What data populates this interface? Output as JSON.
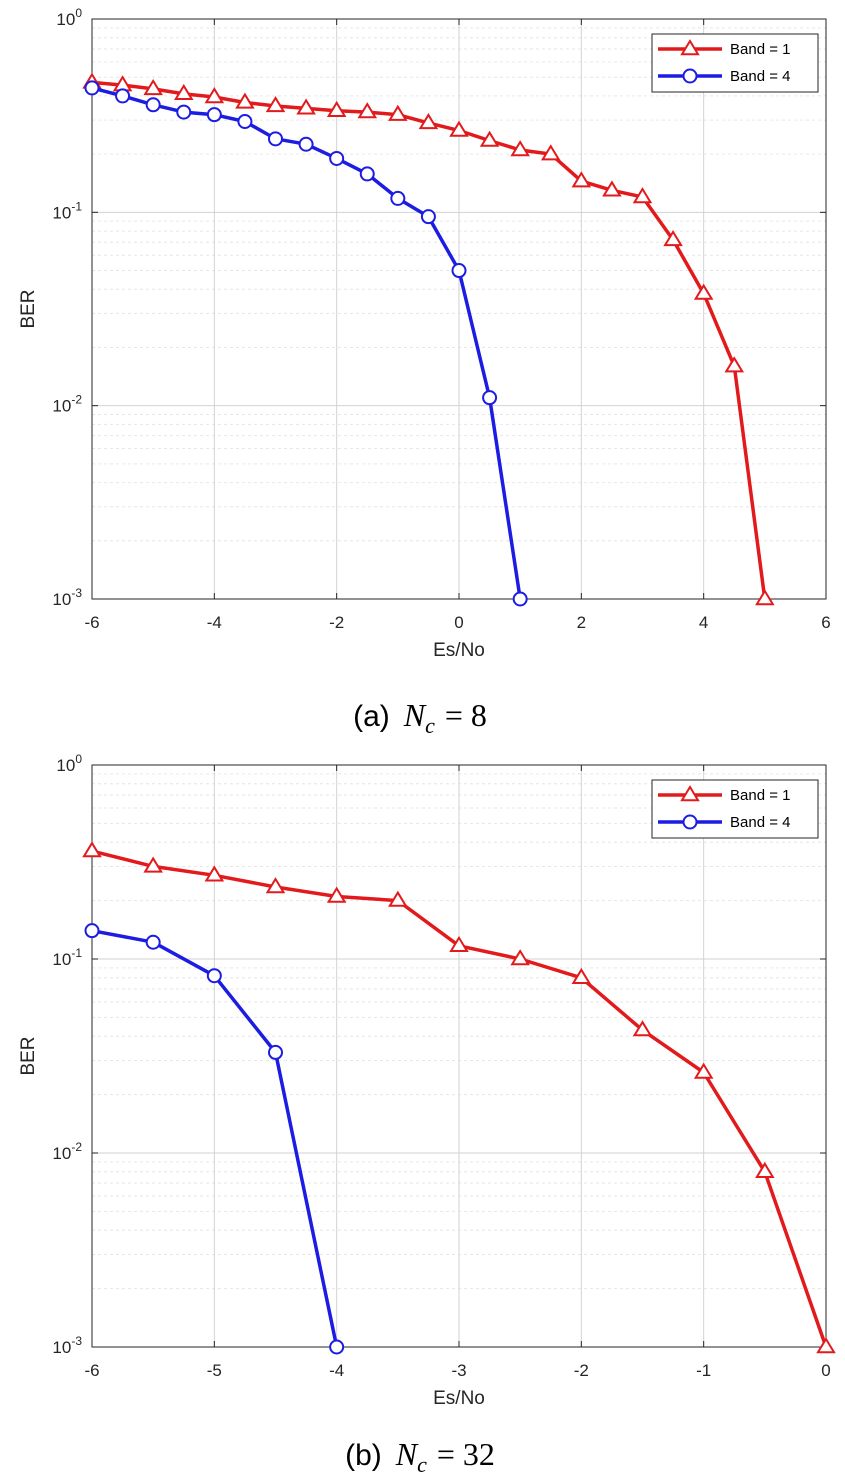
{
  "chart_data": [
    {
      "type": "line",
      "yscale": "log",
      "xlabel": "Es/No",
      "ylabel": "BER",
      "xlim": [
        -6,
        6
      ],
      "ylim": [
        0.001,
        1
      ],
      "x_ticks": [
        -6,
        -4,
        -2,
        0,
        2,
        4,
        6
      ],
      "x_tick_labels": [
        "-6",
        "-4",
        "-2",
        "0",
        "2",
        "4",
        "6"
      ],
      "y_tick_base": [
        "10",
        "10",
        "10",
        "10"
      ],
      "y_tick_exp": [
        "0",
        "-1",
        "-2",
        "-3"
      ],
      "grid": true,
      "legend_position": "top-right",
      "caption": {
        "tag": "(a)",
        "symbol": "N",
        "sub": "c",
        "rest": "= 8"
      },
      "series": [
        {
          "name": "Band = 1",
          "color": "#e31a1c",
          "marker": "triangle",
          "x": [
            -6,
            -5.5,
            -5,
            -4.5,
            -4,
            -3.5,
            -3,
            -2.5,
            -2,
            -1.5,
            -1,
            -0.5,
            0,
            0.5,
            1,
            1.5,
            2,
            2.5,
            3,
            3.5,
            4,
            4.5,
            5
          ],
          "y": [
            0.47,
            0.455,
            0.435,
            0.41,
            0.395,
            0.37,
            0.355,
            0.345,
            0.335,
            0.33,
            0.32,
            0.29,
            0.265,
            0.235,
            0.21,
            0.2,
            0.145,
            0.13,
            0.12,
            0.072,
            0.038,
            0.016,
            0.001
          ]
        },
        {
          "name": "Band = 4",
          "color": "#1c1ce3",
          "marker": "circle",
          "x": [
            -6,
            -5.5,
            -5,
            -4.5,
            -4,
            -3.5,
            -3,
            -2.5,
            -2,
            -1.5,
            -1,
            -0.5,
            0,
            0.5,
            1
          ],
          "y": [
            0.44,
            0.4,
            0.36,
            0.33,
            0.32,
            0.295,
            0.24,
            0.225,
            0.19,
            0.158,
            0.118,
            0.095,
            0.05,
            0.011,
            0.001
          ]
        }
      ]
    },
    {
      "type": "line",
      "yscale": "log",
      "xlabel": "Es/No",
      "ylabel": "BER",
      "xlim": [
        -6,
        0
      ],
      "ylim": [
        0.001,
        1
      ],
      "x_ticks": [
        -6,
        -5,
        -4,
        -3,
        -2,
        -1,
        0
      ],
      "x_tick_labels": [
        "-6",
        "-5",
        "-4",
        "-3",
        "-2",
        "-1",
        "0"
      ],
      "y_tick_base": [
        "10",
        "10",
        "10",
        "10"
      ],
      "y_tick_exp": [
        "0",
        "-1",
        "-2",
        "-3"
      ],
      "grid": true,
      "legend_position": "top-right",
      "caption": {
        "tag": "(b)",
        "symbol": "N",
        "sub": "c",
        "rest": "= 32"
      },
      "series": [
        {
          "name": "Band = 1",
          "color": "#e31a1c",
          "marker": "triangle",
          "x": [
            -6,
            -5.5,
            -5,
            -4.5,
            -4,
            -3.5,
            -3,
            -2.5,
            -2,
            -1.5,
            -1,
            -0.5,
            0
          ],
          "y": [
            0.36,
            0.3,
            0.27,
            0.235,
            0.21,
            0.2,
            0.117,
            0.1,
            0.08,
            0.043,
            0.026,
            0.008,
            0.001
          ]
        },
        {
          "name": "Band = 4",
          "color": "#1c1ce3",
          "marker": "circle",
          "x": [
            -6,
            -5.5,
            -5,
            -4.5,
            -4
          ],
          "y": [
            0.14,
            0.122,
            0.082,
            0.033,
            0.001
          ]
        }
      ]
    }
  ]
}
